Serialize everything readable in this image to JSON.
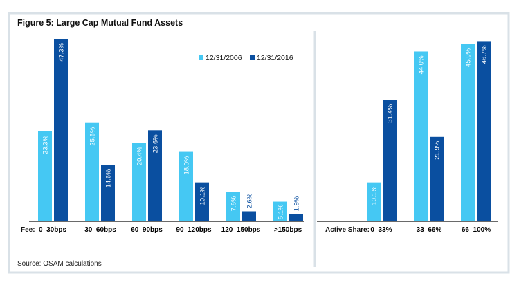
{
  "title": "Figure 5: Large Cap Mutual Fund Assets",
  "source": "Source: OSAM calculations",
  "colors": {
    "s2006": "#45c8f3",
    "s2016": "#0a4fa0",
    "frame": "#d9e1e7"
  },
  "chart_data": [
    {
      "type": "bar",
      "title": "Figure 5: Large Cap Mutual Fund Assets",
      "xlabel": "Fee:",
      "ylabel": "",
      "ylim": [
        0,
        50
      ],
      "categories": [
        "0–30bps",
        "30–60bps",
        "60–90bps",
        "90–120bps",
        "120–150bps",
        ">150bps"
      ],
      "series": [
        {
          "name": "12/31/2006",
          "values": [
            23.3,
            25.5,
            20.4,
            18.0,
            7.6,
            5.1
          ]
        },
        {
          "name": "12/31/2016",
          "values": [
            47.3,
            14.6,
            23.6,
            10.1,
            2.6,
            1.9
          ]
        }
      ],
      "legend": "top-right",
      "grid": false
    },
    {
      "type": "bar",
      "xlabel": "Active Share:",
      "ylim": [
        0,
        50
      ],
      "categories": [
        "0–33%",
        "33–66%",
        "66–100%"
      ],
      "series": [
        {
          "name": "12/31/2006",
          "values": [
            10.1,
            44.0,
            45.9
          ]
        },
        {
          "name": "12/31/2016",
          "values": [
            31.4,
            21.9,
            46.7
          ]
        }
      ],
      "grid": false
    }
  ]
}
